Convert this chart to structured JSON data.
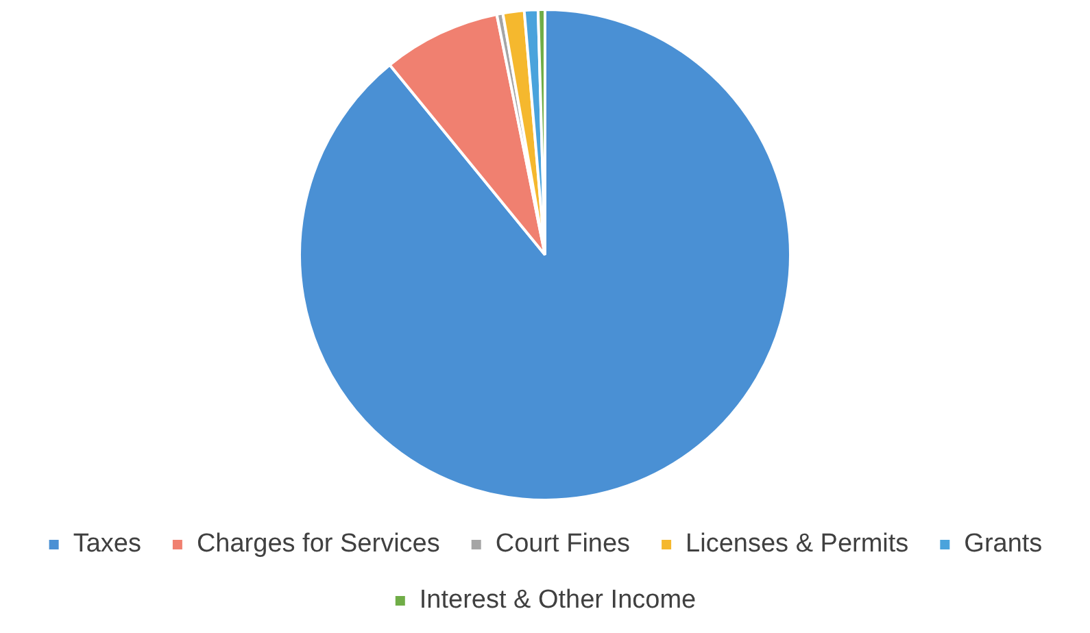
{
  "chart_data": {
    "type": "pie",
    "categories": [
      "Taxes",
      "Charges for Services",
      "Court Fines",
      "Licenses & Permits",
      "Grants",
      "Interest & Other Income"
    ],
    "values": [
      89.1,
      7.75,
      0.4,
      1.4,
      0.9,
      0.45
    ],
    "colors": [
      "#4a90d4",
      "#f08070",
      "#a5a5a5",
      "#f5b82e",
      "#4aa3dc",
      "#70ad47"
    ],
    "legend": "bottom"
  }
}
